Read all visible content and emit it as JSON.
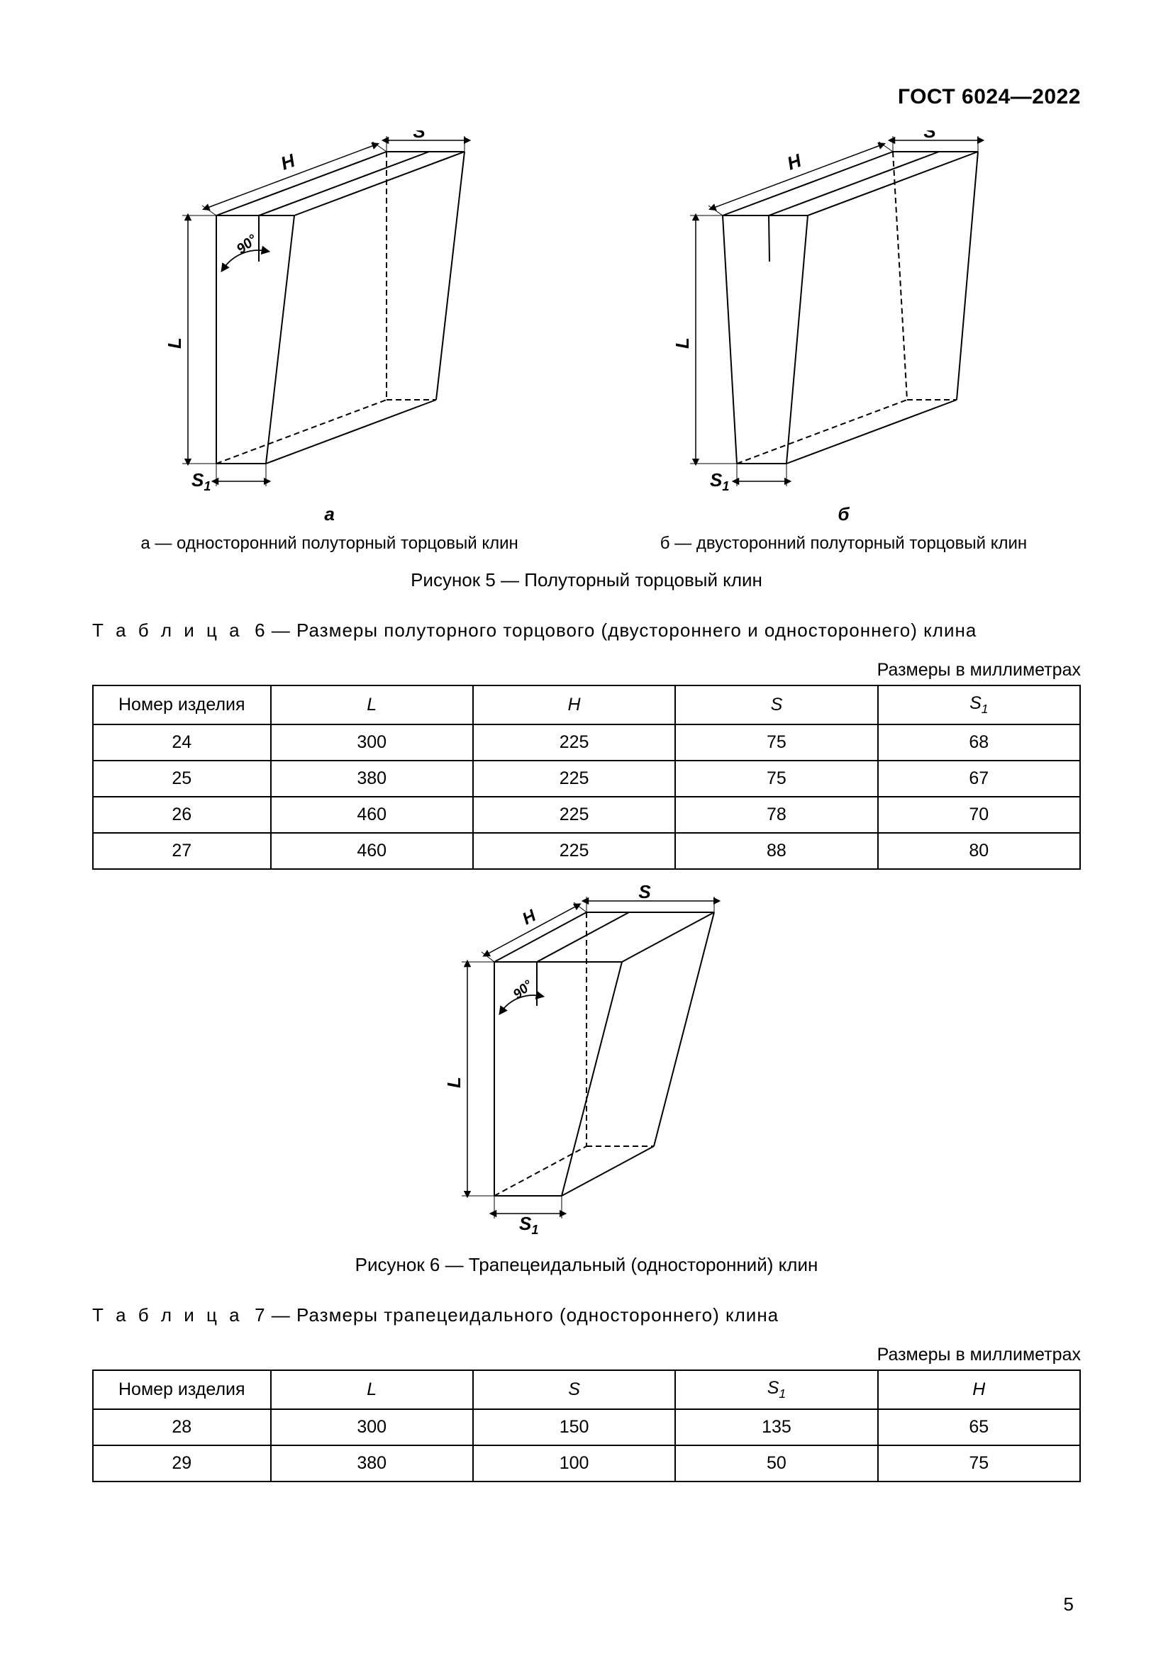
{
  "document": {
    "header": "ГОСТ 6024—2022",
    "page_number": "5"
  },
  "figure5": {
    "label_a": "а",
    "label_b": "б",
    "caption_a": "а — односторонний полуторный торцовый клин",
    "caption_b": "б — двусторонний полуторный торцовый клин",
    "main_caption": "Рисунок 5 — Полуторный торцовый клин",
    "dim_S": "S",
    "dim_S1": "S",
    "dim_S1_sub": "1",
    "dim_H": "H",
    "dim_L": "L",
    "angle": "90°",
    "stroke": "#000000",
    "stroke_width": 2,
    "dash": "8,5"
  },
  "table6": {
    "title_prefix": "Т а б л и ц а",
    "title_num": "6",
    "title_rest": "— Размеры полуторного торцового (двустороннего и одностороннего) клина",
    "units": "Размеры в миллиметрах",
    "columns": [
      "Номер изделия",
      "L",
      "H",
      "S",
      "S1"
    ],
    "col_sub": [
      "",
      "",
      "",
      "",
      "1"
    ],
    "rows": [
      [
        "24",
        "300",
        "225",
        "75",
        "68"
      ],
      [
        "25",
        "380",
        "225",
        "75",
        "67"
      ],
      [
        "26",
        "460",
        "225",
        "78",
        "70"
      ],
      [
        "27",
        "460",
        "225",
        "88",
        "80"
      ]
    ],
    "col_widths": [
      "18%",
      "20.5%",
      "20.5%",
      "20.5%",
      "20.5%"
    ],
    "border_color": "#000000"
  },
  "figure6": {
    "main_caption": "Рисунок 6 — Трапецеидальный (односторонний) клин",
    "dim_S": "S",
    "dim_S1": "S",
    "dim_S1_sub": "1",
    "dim_H": "H",
    "dim_L": "L",
    "angle": "90°",
    "stroke": "#000000",
    "stroke_width": 2,
    "dash": "8,5"
  },
  "table7": {
    "title_prefix": "Т а б л и ц а",
    "title_num": "7",
    "title_rest": "— Размеры трапецеидального (одностороннего) клина",
    "units": "Размеры в миллиметрах",
    "columns": [
      "Номер изделия",
      "L",
      "S",
      "S1",
      "H"
    ],
    "col_sub": [
      "",
      "",
      "",
      "1",
      ""
    ],
    "rows": [
      [
        "28",
        "300",
        "150",
        "135",
        "65"
      ],
      [
        "29",
        "380",
        "100",
        "50",
        "75"
      ]
    ],
    "col_widths": [
      "18%",
      "20.5%",
      "20.5%",
      "20.5%",
      "20.5%"
    ],
    "border_color": "#000000"
  }
}
